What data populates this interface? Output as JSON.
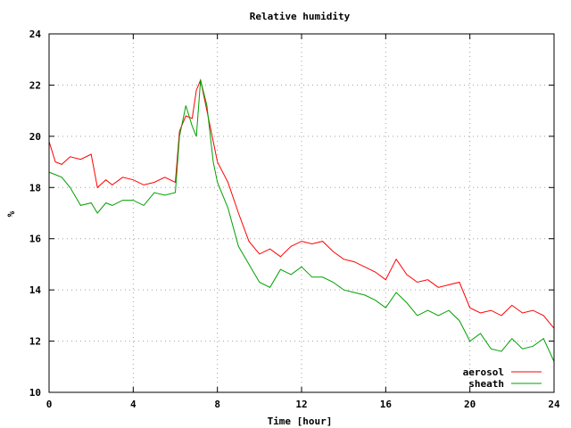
{
  "chart_data": {
    "type": "line",
    "title": "Relative humidity",
    "xlabel": "Time [hour]",
    "ylabel": "%",
    "xlim": [
      0,
      24
    ],
    "ylim": [
      10,
      24
    ],
    "x_ticks": [
      0,
      4,
      8,
      12,
      16,
      20,
      24
    ],
    "y_ticks": [
      10,
      12,
      14,
      16,
      18,
      20,
      22,
      24
    ],
    "grid": true,
    "legend_position": "bottom-right",
    "series": [
      {
        "name": "aerosol",
        "color": "#ff0000",
        "x": [
          0,
          0.3,
          0.6,
          1.0,
          1.5,
          2.0,
          2.3,
          2.7,
          3.0,
          3.5,
          4.0,
          4.5,
          5.0,
          5.5,
          6.0,
          6.2,
          6.5,
          6.8,
          7.0,
          7.2,
          7.5,
          7.8,
          8.0,
          8.5,
          9.0,
          9.5,
          10.0,
          10.5,
          11.0,
          11.5,
          12.0,
          12.5,
          13.0,
          13.5,
          14.0,
          14.5,
          15.0,
          15.5,
          16.0,
          16.5,
          17.0,
          17.5,
          18.0,
          18.5,
          19.0,
          19.5,
          20.0,
          20.5,
          21.0,
          21.5,
          22.0,
          22.5,
          23.0,
          23.5,
          24.0
        ],
        "y": [
          19.8,
          19.0,
          18.9,
          19.2,
          19.1,
          19.3,
          18.0,
          18.3,
          18.1,
          18.4,
          18.3,
          18.1,
          18.2,
          18.4,
          18.2,
          20.2,
          20.8,
          20.7,
          21.8,
          22.2,
          21.0,
          19.8,
          19.0,
          18.2,
          17.0,
          15.9,
          15.4,
          15.6,
          15.3,
          15.7,
          15.9,
          15.8,
          15.9,
          15.5,
          15.2,
          15.1,
          14.9,
          14.7,
          14.4,
          15.2,
          14.6,
          14.3,
          14.4,
          14.1,
          14.2,
          14.3,
          13.3,
          13.1,
          13.2,
          13.0,
          13.4,
          13.1,
          13.2,
          13.0,
          12.5
        ]
      },
      {
        "name": "sheath",
        "color": "#00a000",
        "x": [
          0,
          0.3,
          0.6,
          1.0,
          1.5,
          2.0,
          2.3,
          2.7,
          3.0,
          3.5,
          4.0,
          4.5,
          5.0,
          5.5,
          6.0,
          6.2,
          6.5,
          6.8,
          7.0,
          7.2,
          7.5,
          7.8,
          8.0,
          8.5,
          9.0,
          9.5,
          10.0,
          10.5,
          11.0,
          11.5,
          12.0,
          12.5,
          13.0,
          13.5,
          14.0,
          14.5,
          15.0,
          15.5,
          16.0,
          16.5,
          17.0,
          17.5,
          18.0,
          18.5,
          19.0,
          19.5,
          20.0,
          20.5,
          21.0,
          21.5,
          22.0,
          22.5,
          23.0,
          23.5,
          24.0
        ],
        "y": [
          18.6,
          18.5,
          18.4,
          18.0,
          17.3,
          17.4,
          17.0,
          17.4,
          17.3,
          17.5,
          17.5,
          17.3,
          17.8,
          17.7,
          17.8,
          20.0,
          21.2,
          20.4,
          20.0,
          22.2,
          21.2,
          19.0,
          18.2,
          17.2,
          15.7,
          15.0,
          14.3,
          14.1,
          14.8,
          14.6,
          14.9,
          14.5,
          14.5,
          14.3,
          14.0,
          13.9,
          13.8,
          13.6,
          13.3,
          13.9,
          13.5,
          13.0,
          13.2,
          13.0,
          13.2,
          12.8,
          12.0,
          12.3,
          11.7,
          11.6,
          12.1,
          11.7,
          11.8,
          12.1,
          11.2
        ]
      }
    ]
  }
}
